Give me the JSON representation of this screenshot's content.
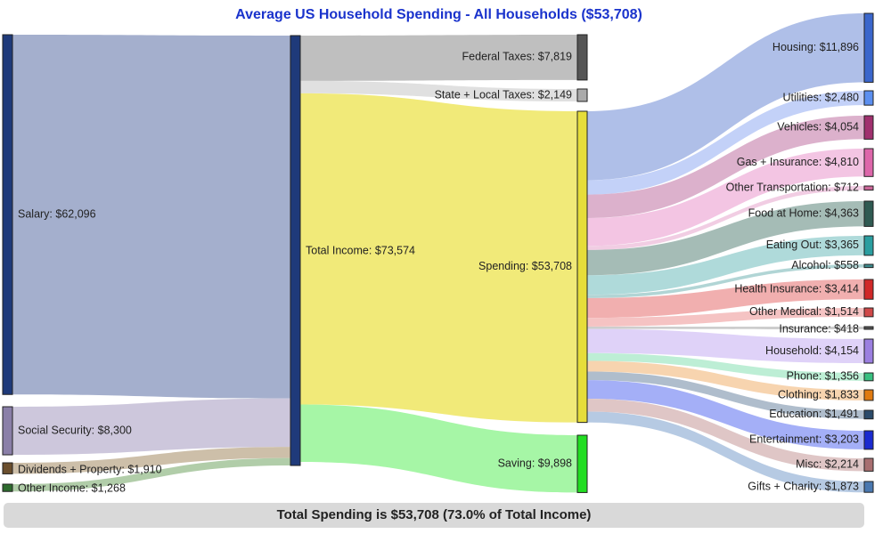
{
  "title": "Average US Household Spending - All Households ($53,708)",
  "footer": "Total Spending is $53,708 (73.0% of Total Income)",
  "chart_data": {
    "type": "sankey",
    "title": "Average US Household Spending - All Households ($53,708)",
    "nodes": [
      {
        "id": "salary",
        "label": "Salary: $62,096",
        "value": 62096,
        "color": "#1f3a7a"
      },
      {
        "id": "social",
        "label": "Social Security: $8,300",
        "value": 8300,
        "color": "#8a7fa8"
      },
      {
        "id": "dividends",
        "label": "Dividends + Property: $1,910",
        "value": 1910,
        "color": "#6b4f2e"
      },
      {
        "id": "other_income",
        "label": "Other Income: $1,268",
        "value": 1268,
        "color": "#2e6b2e"
      },
      {
        "id": "total_income",
        "label": "Total Income: $73,574",
        "value": 73574,
        "color": "#1f3a7a"
      },
      {
        "id": "federal",
        "label": "Federal Taxes: $7,819",
        "value": 7819,
        "color": "#555555"
      },
      {
        "id": "state",
        "label": "State + Local Taxes: $2,149",
        "value": 2149,
        "color": "#aaaaaa"
      },
      {
        "id": "spending",
        "label": "Spending: $53,708",
        "value": 53708,
        "color": "#e6dd3a"
      },
      {
        "id": "saving",
        "label": "Saving: $9,898",
        "value": 9898,
        "color": "#22dd22"
      },
      {
        "id": "housing",
        "label": "Housing: $11,896",
        "value": 11896,
        "color": "#3a66cc"
      },
      {
        "id": "utilities",
        "label": "Utilities: $2,480",
        "value": 2480,
        "color": "#5b8ff0"
      },
      {
        "id": "vehicles",
        "label": "Vehicles: $4,054",
        "value": 4054,
        "color": "#a0306e"
      },
      {
        "id": "gas_ins",
        "label": "Gas + Insurance: $4,810",
        "value": 4810,
        "color": "#dd66aa"
      },
      {
        "id": "other_transport",
        "label": "Other Transportation: $712",
        "value": 712,
        "color": "#cc6699"
      },
      {
        "id": "food_home",
        "label": "Food at Home: $4,363",
        "value": 4363,
        "color": "#2f5a52"
      },
      {
        "id": "eating_out",
        "label": "Eating Out: $3,365",
        "value": 3365,
        "color": "#2a9ea0"
      },
      {
        "id": "alcohol",
        "label": "Alcohol: $558",
        "value": 558,
        "color": "#3d8a8c"
      },
      {
        "id": "health_ins",
        "label": "Health Insurance: $3,414",
        "value": 3414,
        "color": "#d02828"
      },
      {
        "id": "other_medical",
        "label": "Other Medical: $1,514",
        "value": 1514,
        "color": "#d04848"
      },
      {
        "id": "insurance",
        "label": "Insurance: $418",
        "value": 418,
        "color": "#555555"
      },
      {
        "id": "household",
        "label": "Household: $4,154",
        "value": 4154,
        "color": "#9b7fe0"
      },
      {
        "id": "phone",
        "label": "Phone: $1,356",
        "value": 1356,
        "color": "#38c080"
      },
      {
        "id": "clothing",
        "label": "Clothing: $1,833",
        "value": 1833,
        "color": "#e07a10"
      },
      {
        "id": "education",
        "label": "Education: $1,491",
        "value": 1491,
        "color": "#2a4a6a"
      },
      {
        "id": "entertainment",
        "label": "Entertainment: $3,203",
        "value": 3203,
        "color": "#1a2ad0"
      },
      {
        "id": "misc",
        "label": "Misc: $2,214",
        "value": 2214,
        "color": "#a86e70"
      },
      {
        "id": "gifts",
        "label": "Gifts + Charity: $1,873",
        "value": 1873,
        "color": "#4a78b0"
      }
    ],
    "links": [
      {
        "source": "salary",
        "target": "total_income",
        "value": 62096,
        "color": "#9aa6c8"
      },
      {
        "source": "social",
        "target": "total_income",
        "value": 8300,
        "color": "#c8c1d8"
      },
      {
        "source": "dividends",
        "target": "total_income",
        "value": 1910,
        "color": "#c8b8a0"
      },
      {
        "source": "other_income",
        "target": "total_income",
        "value": 1268,
        "color": "#a8c8a0"
      },
      {
        "source": "total_income",
        "target": "federal",
        "value": 7819,
        "color": "#b8b8b8"
      },
      {
        "source": "total_income",
        "target": "state",
        "value": 2149,
        "color": "#dddddd"
      },
      {
        "source": "total_income",
        "target": "spending",
        "value": 53708,
        "color": "#efe86a"
      },
      {
        "source": "total_income",
        "target": "saving",
        "value": 9898,
        "color": "#9cf59c"
      },
      {
        "source": "spending",
        "target": "housing",
        "value": 11896,
        "color": "#a6b8e6"
      },
      {
        "source": "spending",
        "target": "utilities",
        "value": 2480,
        "color": "#bcccf7"
      },
      {
        "source": "spending",
        "target": "vehicles",
        "value": 4054,
        "color": "#d8a8c6"
      },
      {
        "source": "spending",
        "target": "gas_ins",
        "value": 4810,
        "color": "#f2bfe0"
      },
      {
        "source": "spending",
        "target": "other_transport",
        "value": 712,
        "color": "#f0c8e0"
      },
      {
        "source": "spending",
        "target": "food_home",
        "value": 4363,
        "color": "#9bb5ae"
      },
      {
        "source": "spending",
        "target": "eating_out",
        "value": 3365,
        "color": "#a6d6d6"
      },
      {
        "source": "spending",
        "target": "alcohol",
        "value": 558,
        "color": "#a8d0d0"
      },
      {
        "source": "spending",
        "target": "health_ins",
        "value": 3414,
        "color": "#f0a6a6"
      },
      {
        "source": "spending",
        "target": "other_medical",
        "value": 1514,
        "color": "#f4bcbc"
      },
      {
        "source": "spending",
        "target": "insurance",
        "value": 418,
        "color": "#c8c8c8"
      },
      {
        "source": "spending",
        "target": "household",
        "value": 4154,
        "color": "#dccdf7"
      },
      {
        "source": "spending",
        "target": "phone",
        "value": 1356,
        "color": "#b6ecd0"
      },
      {
        "source": "spending",
        "target": "clothing",
        "value": 1833,
        "color": "#f6cfa6"
      },
      {
        "source": "spending",
        "target": "education",
        "value": 1491,
        "color": "#a6b6c6"
      },
      {
        "source": "spending",
        "target": "entertainment",
        "value": 3203,
        "color": "#9aa6f6"
      },
      {
        "source": "spending",
        "target": "misc",
        "value": 2214,
        "color": "#dcc0c0"
      },
      {
        "source": "spending",
        "target": "gifts",
        "value": 1873,
        "color": "#aec4e0"
      }
    ]
  }
}
